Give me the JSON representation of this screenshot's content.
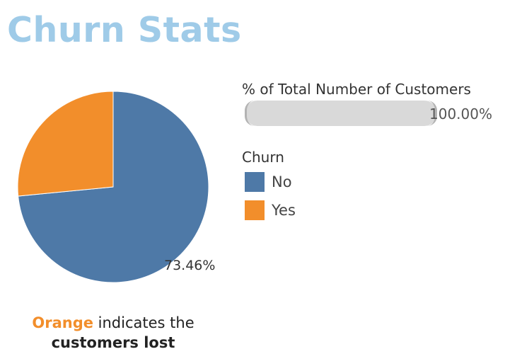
{
  "title": "Churn Stats",
  "colors": {
    "title": "#9fcbe8",
    "no": "#4e79a7",
    "yes": "#f28e2b"
  },
  "chart_data": {
    "type": "pie",
    "categories": [
      "No",
      "Yes"
    ],
    "values": [
      73.46,
      26.54
    ],
    "labels": [
      "73.46%",
      ""
    ],
    "colors": [
      "#4e79a7",
      "#f28e2b"
    ]
  },
  "filter": {
    "title": "% of Total Number of Customers",
    "value": "100.00%",
    "fill_fraction": 1.0
  },
  "legend": {
    "title": "Churn",
    "items": [
      {
        "label": "No",
        "color": "#4e79a7"
      },
      {
        "label": "Yes",
        "color": "#f28e2b"
      }
    ]
  },
  "caption": {
    "highlight": "Orange",
    "rest": " indicates the",
    "bold": "customers lost"
  }
}
